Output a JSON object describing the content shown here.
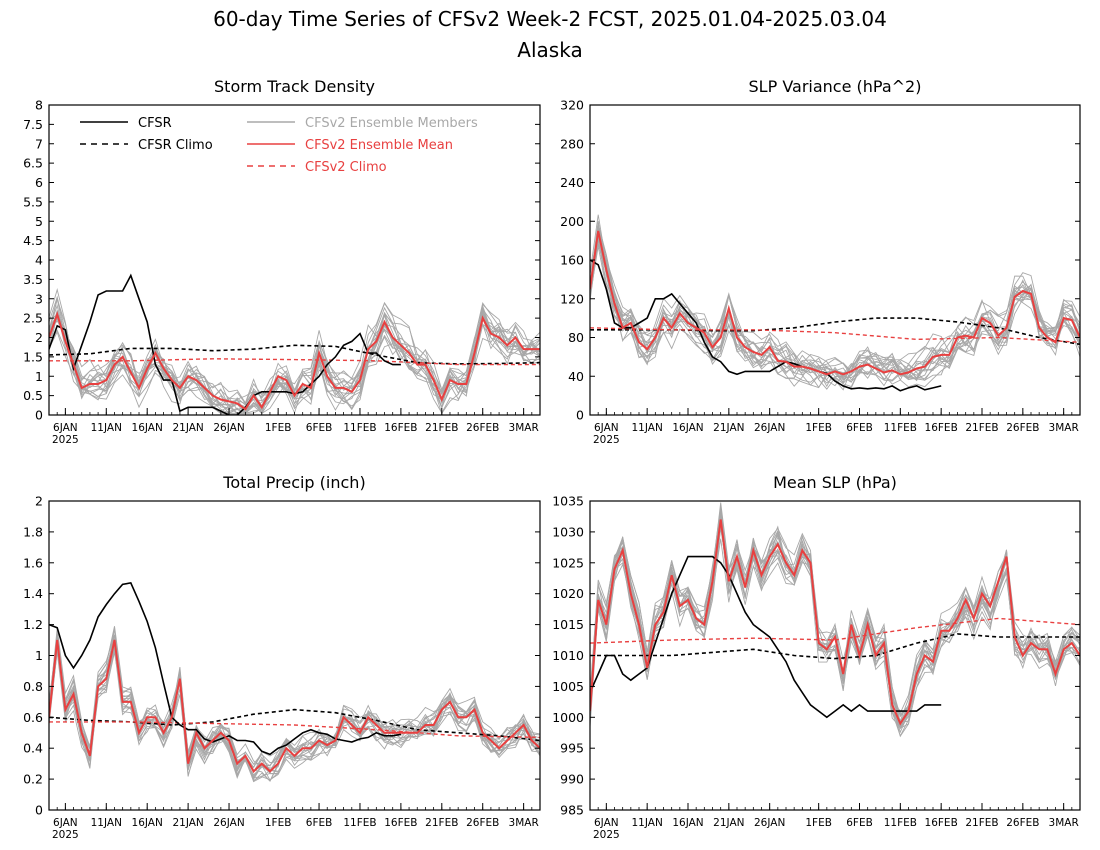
{
  "title": "60-day Time Series of CFSv2 Week-2 FCST, 2025.01.04-2025.03.04",
  "subtitle": "Alaska",
  "colors": {
    "cfsr": "#000000",
    "members": "#a8a8a8",
    "mean": "#e84040",
    "clim_cfsv2": "#e84040"
  },
  "legend": {
    "cfsr": "CFSR",
    "cfsr_climo": "CFSR Climo",
    "members": "CFSv2 Ensemble Members",
    "mean": "CFSv2 Ensemble Mean",
    "cfsv2_climo": "CFSv2 Climo"
  },
  "x_ticks": [
    "6JAN",
    "11JAN",
    "16JAN",
    "21JAN",
    "26JAN",
    "1FEB",
    "6FEB",
    "11FEB",
    "16FEB",
    "21FEB",
    "26FEB",
    "3MAR"
  ],
  "x_tick_days": [
    2,
    7,
    12,
    17,
    22,
    28,
    33,
    38,
    43,
    48,
    53,
    58
  ],
  "x_year_label": "2025",
  "chart_data": [
    {
      "type": "line",
      "title": "Storm Track Density",
      "ylim": [
        0,
        8
      ],
      "yticks": [
        "0",
        "0.5",
        "1",
        "1.5",
        "2",
        "2.5",
        "3",
        "3.5",
        "4",
        "4.5",
        "5",
        "5.5",
        "6",
        "6.5",
        "7",
        "7.5",
        "8"
      ],
      "series": [
        {
          "name": "CFSR",
          "x": [
            0,
            1,
            2,
            3,
            4,
            5,
            6,
            7,
            8,
            9,
            10,
            11,
            12,
            13,
            14,
            15,
            16,
            17,
            18,
            19,
            20,
            21,
            22,
            23,
            24,
            25,
            26,
            27,
            28,
            29,
            30,
            31,
            32,
            33,
            34,
            35,
            36,
            37,
            38,
            39,
            40,
            41,
            42,
            43
          ],
          "y": [
            1.7,
            2.3,
            2.2,
            1.2,
            1.8,
            2.4,
            3.1,
            3.2,
            3.2,
            3.2,
            3.6,
            3.0,
            2.4,
            1.3,
            0.9,
            0.9,
            0.1,
            0.2,
            0.2,
            0.2,
            0.2,
            0.1,
            0.0,
            0.0,
            0.2,
            0.5,
            0.6,
            0.6,
            0.6,
            0.6,
            0.55,
            0.6,
            0.8,
            1.0,
            1.3,
            1.5,
            1.8,
            1.9,
            2.1,
            1.6,
            1.6,
            1.4,
            1.3,
            1.3
          ]
        },
        {
          "name": "CFSR Climo",
          "x": [
            0,
            5,
            10,
            15,
            20,
            25,
            30,
            35,
            40,
            45,
            50,
            55,
            60
          ],
          "y": [
            1.55,
            1.58,
            1.72,
            1.72,
            1.66,
            1.7,
            1.8,
            1.77,
            1.55,
            1.35,
            1.32,
            1.33,
            1.35
          ]
        },
        {
          "name": "CFSv2 Ensemble Mean",
          "y": [
            2.0,
            2.6,
            1.9,
            1.3,
            0.7,
            0.8,
            0.8,
            0.9,
            1.3,
            1.5,
            1.1,
            0.7,
            1.2,
            1.6,
            1.2,
            0.9,
            0.7,
            1.0,
            0.9,
            0.7,
            0.5,
            0.4,
            0.35,
            0.3,
            0.15,
            0.5,
            0.2,
            0.6,
            1.0,
            0.9,
            0.5,
            0.8,
            0.7,
            1.6,
            1.0,
            0.7,
            0.7,
            0.6,
            0.9,
            1.7,
            1.9,
            2.4,
            2.0,
            1.8,
            1.6,
            1.3,
            1.3,
            0.9,
            0.4,
            0.9,
            0.8,
            0.8,
            1.6,
            2.5,
            2.1,
            2.0,
            1.8,
            2.0,
            1.7,
            1.7,
            1.7
          ]
        },
        {
          "name": "CFSv2 Climo",
          "x": [
            0,
            10,
            20,
            30,
            40,
            50,
            60
          ],
          "y": [
            1.4,
            1.4,
            1.45,
            1.43,
            1.4,
            1.3,
            1.3
          ]
        }
      ]
    },
    {
      "type": "line",
      "title": "SLP Variance (hPa^2)",
      "ylim": [
        0,
        320
      ],
      "yticks": [
        "0",
        "40",
        "80",
        "120",
        "160",
        "200",
        "240",
        "280",
        "320"
      ],
      "series": [
        {
          "name": "CFSR",
          "x": [
            0,
            1,
            2,
            3,
            4,
            5,
            6,
            7,
            8,
            9,
            10,
            11,
            12,
            13,
            14,
            15,
            16,
            17,
            18,
            19,
            20,
            21,
            22,
            23,
            24,
            25,
            26,
            27,
            28,
            29,
            30,
            31,
            32,
            33,
            34,
            35,
            36,
            37,
            38,
            39,
            40,
            41,
            42,
            43
          ],
          "y": [
            160,
            155,
            130,
            95,
            90,
            90,
            95,
            100,
            120,
            120,
            125,
            115,
            105,
            95,
            75,
            60,
            55,
            45,
            42,
            45,
            45,
            45,
            45,
            50,
            55,
            53,
            50,
            48,
            45,
            43,
            35,
            30,
            27,
            28,
            27,
            28,
            27,
            30,
            25,
            28,
            30,
            26,
            28,
            30
          ]
        },
        {
          "name": "CFSR Climo",
          "x": [
            0,
            5,
            10,
            15,
            20,
            25,
            30,
            35,
            40,
            45,
            50,
            55,
            60
          ],
          "y": [
            88,
            88,
            88,
            87,
            87,
            90,
            96,
            100,
            100,
            96,
            90,
            80,
            73
          ]
        },
        {
          "name": "CFSv2 Ensemble Mean",
          "y": [
            130,
            190,
            150,
            115,
            90,
            95,
            75,
            68,
            80,
            100,
            90,
            105,
            95,
            90,
            85,
            70,
            80,
            110,
            80,
            70,
            65,
            62,
            70,
            56,
            55,
            50,
            50,
            48,
            45,
            42,
            45,
            42,
            45,
            50,
            52,
            48,
            44,
            46,
            42,
            44,
            48,
            50,
            60,
            62,
            62,
            80,
            82,
            80,
            100,
            95,
            82,
            90,
            122,
            128,
            125,
            90,
            80,
            75,
            100,
            98,
            80
          ]
        },
        {
          "name": "CFSv2 Climo",
          "x": [
            0,
            10,
            20,
            30,
            40,
            50,
            60
          ],
          "y": [
            90,
            88,
            88,
            85,
            78,
            80,
            75
          ]
        }
      ]
    },
    {
      "type": "line",
      "title": "Total Precip (inch)",
      "ylim": [
        0,
        2
      ],
      "yticks": [
        "0",
        "0.2",
        "0.4",
        "0.6",
        "0.8",
        "1",
        "1.2",
        "1.4",
        "1.6",
        "1.8",
        "2"
      ],
      "series": [
        {
          "name": "CFSR",
          "x": [
            0,
            1,
            2,
            3,
            4,
            5,
            6,
            7,
            8,
            9,
            10,
            11,
            12,
            13,
            14,
            15,
            16,
            17,
            18,
            19,
            20,
            21,
            22,
            23,
            24,
            25,
            26,
            27,
            28,
            29,
            30,
            31,
            32,
            33,
            34,
            35,
            36,
            37,
            38,
            39,
            40,
            41,
            42,
            43
          ],
          "y": [
            1.2,
            1.18,
            1.0,
            0.92,
            1.0,
            1.1,
            1.25,
            1.33,
            1.4,
            1.46,
            1.47,
            1.35,
            1.22,
            1.05,
            0.82,
            0.6,
            0.55,
            0.52,
            0.52,
            0.46,
            0.44,
            0.46,
            0.48,
            0.45,
            0.45,
            0.44,
            0.38,
            0.36,
            0.4,
            0.42,
            0.46,
            0.5,
            0.52,
            0.5,
            0.49,
            0.46,
            0.45,
            0.44,
            0.46,
            0.47,
            0.5,
            0.48,
            0.48,
            0.49
          ]
        },
        {
          "name": "CFSR Climo",
          "x": [
            0,
            5,
            10,
            15,
            20,
            25,
            30,
            35,
            40,
            45,
            50,
            55,
            60
          ],
          "y": [
            0.6,
            0.58,
            0.57,
            0.55,
            0.57,
            0.62,
            0.65,
            0.63,
            0.58,
            0.52,
            0.5,
            0.48,
            0.45
          ]
        },
        {
          "name": "CFSv2 Ensemble Mean",
          "y": [
            0.6,
            1.1,
            0.65,
            0.75,
            0.5,
            0.35,
            0.8,
            0.85,
            1.1,
            0.7,
            0.7,
            0.5,
            0.6,
            0.6,
            0.5,
            0.6,
            0.85,
            0.3,
            0.5,
            0.4,
            0.45,
            0.5,
            0.45,
            0.3,
            0.35,
            0.25,
            0.3,
            0.25,
            0.3,
            0.4,
            0.35,
            0.4,
            0.4,
            0.45,
            0.42,
            0.45,
            0.6,
            0.55,
            0.5,
            0.6,
            0.55,
            0.5,
            0.5,
            0.5,
            0.5,
            0.5,
            0.55,
            0.55,
            0.65,
            0.7,
            0.6,
            0.6,
            0.65,
            0.5,
            0.45,
            0.4,
            0.45,
            0.5,
            0.55,
            0.45,
            0.4
          ]
        },
        {
          "name": "CFSv2 Climo",
          "x": [
            0,
            10,
            20,
            30,
            40,
            50,
            60
          ],
          "y": [
            0.57,
            0.57,
            0.56,
            0.55,
            0.52,
            0.48,
            0.47
          ]
        }
      ]
    },
    {
      "type": "line",
      "title": "Mean SLP (hPa)",
      "ylim": [
        985,
        1035
      ],
      "yticks": [
        "985",
        "990",
        "995",
        "1000",
        "1005",
        "1010",
        "1015",
        "1020",
        "1025",
        "1030",
        "1035"
      ],
      "series": [
        {
          "name": "CFSR",
          "x": [
            0,
            1,
            2,
            3,
            4,
            5,
            6,
            7,
            8,
            9,
            10,
            11,
            12,
            13,
            14,
            15,
            16,
            17,
            18,
            19,
            20,
            21,
            22,
            23,
            24,
            25,
            26,
            27,
            28,
            29,
            30,
            31,
            32,
            33,
            34,
            35,
            36,
            37,
            38,
            39,
            40,
            41,
            42,
            43
          ],
          "y": [
            1004,
            1007,
            1010,
            1010,
            1007,
            1006,
            1007,
            1008,
            1012,
            1016,
            1020,
            1023,
            1026,
            1026,
            1026,
            1026,
            1025,
            1023,
            1020,
            1017,
            1015,
            1014,
            1013,
            1011,
            1009,
            1006,
            1004,
            1002,
            1001,
            1000,
            1001,
            1002,
            1001,
            1002,
            1001,
            1001,
            1001,
            1001,
            1001,
            1001,
            1001,
            1002,
            1002,
            1002
          ]
        },
        {
          "name": "CFSR Climo",
          "x": [
            0,
            5,
            10,
            15,
            20,
            25,
            30,
            35,
            40,
            45,
            50,
            55,
            60
          ],
          "y": [
            1010,
            1010,
            1010,
            1010.5,
            1011,
            1010,
            1009.5,
            1010,
            1012,
            1013.5,
            1013,
            1013,
            1013
          ]
        },
        {
          "name": "CFSv2 Ensemble Mean",
          "y": [
            1001,
            1019,
            1015,
            1024,
            1027,
            1020,
            1015,
            1008,
            1015,
            1017,
            1023,
            1018,
            1019,
            1016,
            1015,
            1022,
            1032,
            1022,
            1026,
            1021,
            1027,
            1023,
            1026,
            1028,
            1025,
            1023,
            1027,
            1025,
            1012,
            1011,
            1013,
            1007,
            1015,
            1010,
            1015,
            1010,
            1012,
            1002,
            999,
            1001,
            1007,
            1010,
            1009,
            1014,
            1014,
            1016,
            1019,
            1016,
            1020,
            1018,
            1022,
            1026,
            1013,
            1010,
            1012,
            1011,
            1011,
            1007,
            1011,
            1012,
            1010
          ]
        },
        {
          "name": "CFSv2 Climo",
          "x": [
            0,
            10,
            20,
            30,
            40,
            50,
            60
          ],
          "y": [
            1012,
            1012.5,
            1012.8,
            1012.5,
            1014.5,
            1016,
            1015
          ]
        }
      ]
    }
  ]
}
